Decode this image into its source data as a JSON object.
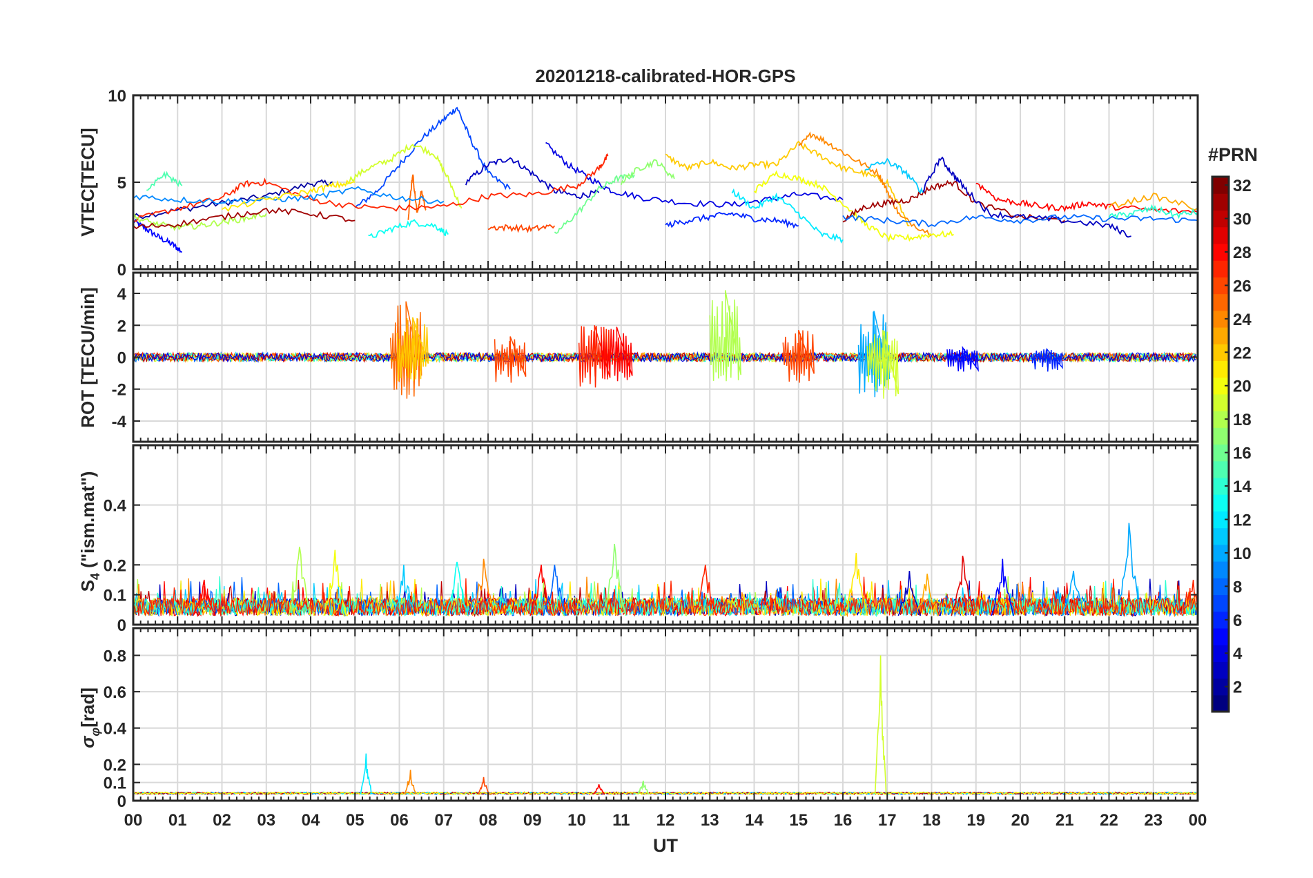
{
  "chart_data": [
    {
      "type": "line",
      "panel": "vtec",
      "title": "20201218-calibrated-HOR-GPS",
      "xlabel": "",
      "ylabel": "VTEC[TECU]",
      "xlim": [
        0,
        24
      ],
      "ylim": [
        0,
        10
      ],
      "yticks": [
        0,
        5,
        10
      ],
      "ytick_labels": [
        "0",
        "5",
        "10"
      ],
      "grid": true,
      "series": [
        {
          "prn": 5,
          "x": [
            0,
            0.3,
            0.6,
            0.9,
            1.1
          ],
          "y": [
            2.8,
            2.3,
            1.8,
            1.4,
            1.0
          ]
        },
        {
          "prn": 2,
          "x": [
            0,
            1,
            2,
            3,
            4,
            4.5
          ],
          "y": [
            3.0,
            3.4,
            3.8,
            4.2,
            4.9,
            5.0
          ]
        },
        {
          "prn": 7,
          "x": [
            5,
            5.5,
            6,
            6.5,
            7,
            7.3,
            7.6,
            8,
            8.5
          ],
          "y": [
            3.5,
            4.5,
            6.0,
            7.5,
            8.6,
            9.3,
            7.5,
            5.5,
            4.6
          ]
        },
        {
          "prn": 3,
          "x": [
            7.5,
            8,
            8.5,
            9,
            9.5,
            10,
            10.5
          ],
          "y": [
            5.0,
            6.0,
            6.4,
            5.5,
            4.5,
            4.2,
            4.4
          ]
        },
        {
          "prn": 4,
          "x": [
            9.3,
            9.8,
            10.3,
            10.8,
            11.5,
            12.5,
            13.5,
            14.3,
            15,
            16
          ],
          "y": [
            7.2,
            6.0,
            5.2,
            4.5,
            4.1,
            3.8,
            3.7,
            4.0,
            4.3,
            4.0
          ]
        },
        {
          "prn": 19,
          "x": [
            4.8,
            5.3,
            5.8,
            6.3,
            6.8,
            7.1,
            7.4
          ],
          "y": [
            5.0,
            5.8,
            6.3,
            7.2,
            6.6,
            5.2,
            3.5
          ]
        },
        {
          "prn": 22,
          "x": [
            12,
            12.5,
            13,
            13.5,
            14,
            14.5,
            15,
            15.5,
            16,
            16.5,
            17,
            17.5
          ],
          "y": [
            6.5,
            5.8,
            6.2,
            5.8,
            6.0,
            6.0,
            7.2,
            6.5,
            5.8,
            5.5,
            5.0,
            2.5
          ]
        },
        {
          "prn": 24,
          "x": [
            15,
            15.3,
            15.7,
            16.2,
            16.8,
            17,
            17.3,
            18
          ],
          "y": [
            7.0,
            7.8,
            7.2,
            6.4,
            5.5,
            4.5,
            3.0,
            2.0
          ]
        },
        {
          "prn": 25,
          "x": [
            6.2,
            6.3,
            6.4,
            6.5,
            6.6
          ],
          "y": [
            3.0,
            5.5,
            3.2,
            4.5,
            3.4
          ]
        },
        {
          "prn": 13,
          "x": [
            5.3,
            5.8,
            6.3,
            6.8,
            7.1
          ],
          "y": [
            1.8,
            2.3,
            2.7,
            2.5,
            2.0
          ]
        },
        {
          "prn": 27,
          "x": [
            0,
            1,
            2,
            2.5,
            3,
            4,
            5,
            6,
            7,
            8,
            9,
            10,
            10.5,
            10.7
          ],
          "y": [
            2.8,
            3.5,
            4.1,
            4.9,
            5.0,
            4.0,
            3.6,
            3.5,
            3.6,
            4.2,
            4.3,
            4.8,
            5.8,
            6.5
          ]
        },
        {
          "prn": 16,
          "x": [
            9.5,
            10,
            10.5,
            10.9,
            11.3
          ],
          "y": [
            2.0,
            3.2,
            4.6,
            5.2,
            5.4
          ]
        },
        {
          "prn": 17,
          "x": [
            11,
            11.4,
            11.8,
            12.2
          ],
          "y": [
            5.0,
            5.8,
            6.2,
            5.2
          ]
        },
        {
          "prn": 26,
          "x": [
            8,
            8.5,
            9,
            9.5
          ],
          "y": [
            2.4,
            2.4,
            2.3,
            2.5
          ]
        },
        {
          "prn": 20,
          "x": [
            14,
            14.5,
            15,
            15.5,
            16,
            16.5,
            17,
            17.5,
            18,
            18.5
          ],
          "y": [
            4.5,
            5.5,
            5.2,
            4.8,
            3.8,
            2.6,
            1.8,
            1.8,
            2.0,
            2.0
          ]
        },
        {
          "prn": 12,
          "x": [
            13.5,
            14,
            14.5,
            15,
            15.5,
            16
          ],
          "y": [
            4.5,
            3.5,
            4.2,
            3.2,
            2.0,
            1.7
          ]
        },
        {
          "prn": 6,
          "x": [
            12,
            12.5,
            13,
            13.5,
            14,
            14.5,
            15
          ],
          "y": [
            2.5,
            2.8,
            3.0,
            3.2,
            2.9,
            2.8,
            2.5
          ]
        },
        {
          "prn": 31,
          "x": [
            16,
            16.5,
            17,
            17.5,
            18,
            18.5,
            19,
            20,
            21
          ],
          "y": [
            2.8,
            3.6,
            3.8,
            4.0,
            4.7,
            5.0,
            3.8,
            3.0,
            2.8
          ]
        },
        {
          "prn": 3,
          "x": [
            17.8,
            18.2,
            18.5,
            18.8,
            19.3,
            20,
            21,
            22,
            22.5
          ],
          "y": [
            4.5,
            6.4,
            5.4,
            4.5,
            3.2,
            3.0,
            2.8,
            2.5,
            1.9
          ]
        },
        {
          "prn": 8,
          "x": [
            16,
            17,
            18,
            19,
            20,
            21,
            22,
            23,
            24
          ],
          "y": [
            3.0,
            2.8,
            2.6,
            3.0,
            2.8,
            3.0,
            2.9,
            2.9,
            2.8
          ]
        },
        {
          "prn": 11,
          "x": [
            16.5,
            17,
            17.4,
            17.8
          ],
          "y": [
            5.8,
            6.2,
            5.6,
            4.4
          ]
        },
        {
          "prn": 28,
          "x": [
            19,
            19.5,
            20,
            20.5,
            21,
            21.5,
            22,
            23,
            24
          ],
          "y": [
            5.0,
            4.0,
            3.8,
            3.6,
            3.5,
            3.8,
            3.6,
            3.4,
            3.3
          ]
        },
        {
          "prn": 9,
          "x": [
            0,
            1,
            2,
            3,
            4,
            5,
            6,
            7
          ],
          "y": [
            4.2,
            4.0,
            3.9,
            4.0,
            4.1,
            4.6,
            4.1,
            3.9
          ]
        },
        {
          "prn": 18,
          "x": [
            0,
            0.5,
            1,
            1.5,
            2,
            2.5,
            3
          ],
          "y": [
            3.0,
            2.6,
            2.4,
            2.5,
            2.7,
            2.9,
            3.2
          ]
        },
        {
          "prn": 21,
          "x": [
            2,
            3,
            4,
            4.5,
            5
          ],
          "y": [
            3.4,
            4.0,
            4.5,
            4.8,
            5.0
          ]
        },
        {
          "prn": 31,
          "x": [
            0,
            1,
            2,
            3,
            4,
            5
          ],
          "y": [
            2.4,
            2.6,
            3.0,
            3.4,
            3.2,
            2.8
          ]
        },
        {
          "prn": 15,
          "x": [
            0.3,
            0.7,
            1.1
          ],
          "y": [
            4.4,
            5.5,
            4.8
          ]
        },
        {
          "prn": 23,
          "x": [
            22,
            23,
            24
          ],
          "y": [
            3.6,
            4.2,
            3.5
          ]
        },
        {
          "prn": 14,
          "x": [
            22,
            22.5,
            23,
            23.5,
            24
          ],
          "y": [
            3.0,
            3.2,
            3.5,
            3.1,
            3.3
          ]
        }
      ]
    },
    {
      "type": "line",
      "panel": "rot",
      "xlabel": "",
      "ylabel": "ROT [TECU/min]",
      "xlim": [
        0,
        24
      ],
      "ylim": [
        -5.3,
        5.3
      ],
      "yticks": [
        -4,
        -2,
        0,
        2,
        4
      ],
      "ytick_labels": [
        "-4",
        "-2",
        "0",
        "2",
        "4"
      ],
      "grid": true,
      "spikes": [
        {
          "prn": 25,
          "x": 6.15,
          "lo": -2.6,
          "hi": 3.5
        },
        {
          "prn": 22,
          "x": 6.3,
          "lo": -1.5,
          "hi": 2.5
        },
        {
          "prn": 26,
          "x": 8.5,
          "lo": -1.6,
          "hi": 1.3
        },
        {
          "prn": 27,
          "x": 10.4,
          "lo": -1.9,
          "hi": 2.0
        },
        {
          "prn": 28,
          "x": 10.9,
          "lo": -1.5,
          "hi": 1.9
        },
        {
          "prn": 18,
          "x": 13.35,
          "lo": -1.5,
          "hi": 4.2
        },
        {
          "prn": 26,
          "x": 15.0,
          "lo": -1.6,
          "hi": 1.7
        },
        {
          "prn": 10,
          "x": 16.7,
          "lo": -2.5,
          "hi": 2.9
        },
        {
          "prn": 19,
          "x": 16.9,
          "lo": -2.6,
          "hi": 1.7
        },
        {
          "prn": 5,
          "x": 18.7,
          "lo": -0.9,
          "hi": 0.6
        },
        {
          "prn": 6,
          "x": 20.6,
          "lo": -0.9,
          "hi": 0.5
        }
      ]
    },
    {
      "type": "line",
      "panel": "s4",
      "xlabel": "",
      "ylabel": "S4 (\"ism.mat\")",
      "ylabel_base": "S",
      "ylabel_sub": "4",
      "ylabel_rest": " (\"ism.mat\")",
      "xlim": [
        0,
        24
      ],
      "ylim": [
        0,
        0.6
      ],
      "yticks": [
        0,
        0.1,
        0.2,
        0.4
      ],
      "ytick_labels": [
        "0",
        "0.1",
        "0.2",
        "0.4"
      ],
      "grid": true,
      "peaks": [
        {
          "prn": 10,
          "x": 22.45,
          "v": 0.34
        },
        {
          "prn": 17,
          "x": 10.85,
          "v": 0.27
        },
        {
          "prn": 18,
          "x": 3.75,
          "v": 0.26
        },
        {
          "prn": 20,
          "x": 4.55,
          "v": 0.25
        },
        {
          "prn": 21,
          "x": 16.3,
          "v": 0.24
        },
        {
          "prn": 29,
          "x": 18.7,
          "v": 0.23
        },
        {
          "prn": 24,
          "x": 7.9,
          "v": 0.22
        },
        {
          "prn": 5,
          "x": 19.6,
          "v": 0.22
        },
        {
          "prn": 28,
          "x": 9.2,
          "v": 0.2
        },
        {
          "prn": 13,
          "x": 7.3,
          "v": 0.21
        },
        {
          "prn": 8,
          "x": 9.5,
          "v": 0.2
        },
        {
          "prn": 27,
          "x": 12.9,
          "v": 0.2
        },
        {
          "prn": 11,
          "x": 6.1,
          "v": 0.2
        },
        {
          "prn": 28,
          "x": 1.6,
          "v": 0.15
        },
        {
          "prn": 3,
          "x": 17.5,
          "v": 0.18
        },
        {
          "prn": 23,
          "x": 17.9,
          "v": 0.17
        },
        {
          "prn": 10,
          "x": 21.2,
          "v": 0.18
        },
        {
          "prn": 27,
          "x": 23.9,
          "v": 0.15
        }
      ]
    },
    {
      "type": "line",
      "panel": "sigma_phi",
      "xlabel": "UT",
      "ylabel": "σφ [rad]",
      "ylabel_base": "σ",
      "ylabel_sub": "φ",
      "ylabel_rest": "[rad]",
      "xlim": [
        0,
        24
      ],
      "ylim": [
        0,
        0.95
      ],
      "yticks": [
        0,
        0.1,
        0.2,
        0.4,
        0.6,
        0.8
      ],
      "ytick_labels": [
        "0",
        "0.1",
        "0.2",
        "0.4",
        "0.6",
        "0.8"
      ],
      "grid": true,
      "peaks": [
        {
          "prn": 19,
          "x": 16.85,
          "v": 0.8
        },
        {
          "prn": 12,
          "x": 5.25,
          "v": 0.26
        },
        {
          "prn": 24,
          "x": 6.25,
          "v": 0.17
        },
        {
          "prn": 26,
          "x": 7.9,
          "v": 0.13
        },
        {
          "prn": 17,
          "x": 11.5,
          "v": 0.11
        },
        {
          "prn": 28,
          "x": 10.5,
          "v": 0.09
        }
      ]
    }
  ],
  "x_tick_labels": [
    "00",
    "01",
    "02",
    "03",
    "04",
    "05",
    "06",
    "07",
    "08",
    "09",
    "10",
    "11",
    "12",
    "13",
    "14",
    "15",
    "16",
    "17",
    "18",
    "19",
    "20",
    "21",
    "22",
    "23",
    "00"
  ],
  "colorbar": {
    "title": "#PRN",
    "range": [
      1,
      32
    ],
    "ticks": [
      2,
      4,
      6,
      8,
      10,
      12,
      14,
      16,
      18,
      20,
      22,
      24,
      26,
      28,
      30,
      32
    ],
    "tick_labels": [
      "2",
      "4",
      "6",
      "8",
      "10",
      "12",
      "14",
      "16",
      "18",
      "20",
      "22",
      "24",
      "26",
      "28",
      "30",
      "32"
    ],
    "colormap": "jet"
  },
  "colors": {
    "axis": "#262626",
    "grid": "#d9d9d9",
    "background": "#ffffff"
  }
}
